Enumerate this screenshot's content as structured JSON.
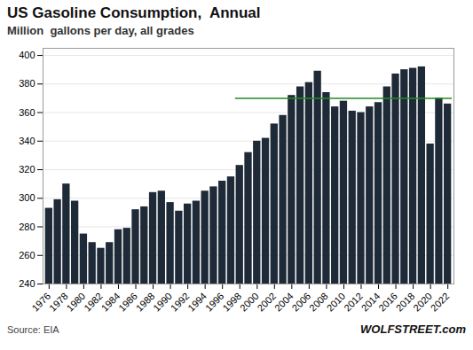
{
  "chart_data": {
    "type": "bar",
    "title": "US Gasoline Consumption,  Annual",
    "subtitle": "Million  gallons per day, all grades",
    "source": "Source: EIA",
    "watermark": "WOLFSTREET.com",
    "x": [
      1976,
      1977,
      1978,
      1979,
      1980,
      1981,
      1982,
      1983,
      1984,
      1985,
      1986,
      1987,
      1988,
      1989,
      1990,
      1991,
      1992,
      1993,
      1994,
      1995,
      1996,
      1997,
      1998,
      1999,
      2000,
      2001,
      2002,
      2003,
      2004,
      2005,
      2006,
      2007,
      2008,
      2009,
      2010,
      2011,
      2012,
      2013,
      2014,
      2015,
      2016,
      2017,
      2018,
      2019,
      2020,
      2021,
      2022
    ],
    "values": [
      293,
      299,
      310,
      298,
      275,
      269,
      265,
      269,
      278,
      279,
      292,
      294,
      304,
      305,
      297,
      291,
      296,
      298,
      305,
      308,
      312,
      315,
      323,
      332,
      340,
      342,
      352,
      358,
      372,
      378,
      381,
      389,
      374,
      364,
      368,
      361,
      360,
      364,
      367,
      378,
      387,
      390,
      391,
      392,
      338,
      370,
      366
    ],
    "color": "#1f2a38",
    "xlim": [
      1975.3,
      2022.7
    ],
    "xticks": [
      1976,
      1978,
      1980,
      1982,
      1984,
      1986,
      1988,
      1990,
      1992,
      1994,
      1996,
      1998,
      2000,
      2002,
      2004,
      2006,
      2008,
      2010,
      2012,
      2014,
      2016,
      2018,
      2020,
      2022
    ],
    "ylim": [
      240,
      405
    ],
    "yticks": [
      240,
      260,
      280,
      300,
      320,
      340,
      360,
      380,
      400
    ],
    "grid": true,
    "reference_line": {
      "y": 370,
      "xstart": 1997.5,
      "xend": 2022.5,
      "color": "#228B22"
    }
  }
}
